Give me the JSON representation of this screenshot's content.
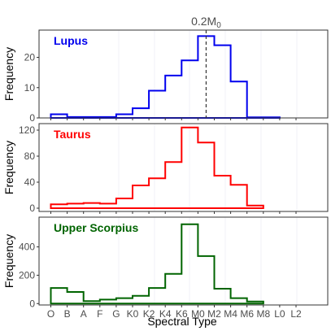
{
  "chart_data": [
    {
      "type": "line",
      "step": true,
      "title": "Lupus",
      "color": "#0000ee",
      "ylabel": "Frequency",
      "ylim": [
        0,
        29
      ],
      "yticks": [
        0,
        10,
        20
      ],
      "x_breaks": [
        "O",
        "B",
        "A",
        "F",
        "G",
        "K0",
        "K2",
        "K4",
        "K6",
        "M0",
        "M2",
        "M4",
        "M6",
        "M8",
        "L0",
        "L2"
      ],
      "values": [
        1.2,
        0.3,
        0.3,
        0.3,
        1.2,
        3.2,
        9.0,
        14.0,
        19.0,
        27.0,
        24.0,
        12.0,
        0.2,
        0.2
      ],
      "annotation": {
        "label": "0.2M",
        "subscript": "0",
        "x_index": 9.5,
        "style": "dashed"
      }
    },
    {
      "type": "line",
      "step": true,
      "title": "Taurus",
      "color": "#ff0000",
      "ylabel": "Frequency",
      "ylim": [
        -5,
        130
      ],
      "yticks": [
        0,
        40,
        80,
        120
      ],
      "values": [
        6,
        7,
        8,
        7,
        15,
        35,
        46,
        71,
        124,
        101,
        50,
        36,
        4
      ]
    },
    {
      "type": "line",
      "step": true,
      "title": "Upper Scorpius",
      "color": "#006400",
      "ylabel": "Frequency",
      "xlabel": "Spectral Type",
      "ylim": [
        -10,
        610
      ],
      "yticks": [
        0,
        200,
        400
      ],
      "x_tick_labels": [
        "O",
        "B",
        "A",
        "F",
        "G",
        "K0",
        "K2",
        "K4",
        "K6",
        "M0",
        "M2",
        "M4",
        "M6",
        "M8",
        "L0",
        "L2"
      ],
      "values": [
        110,
        82,
        17,
        28,
        38,
        55,
        110,
        210,
        560,
        335,
        105,
        38,
        14
      ]
    }
  ]
}
